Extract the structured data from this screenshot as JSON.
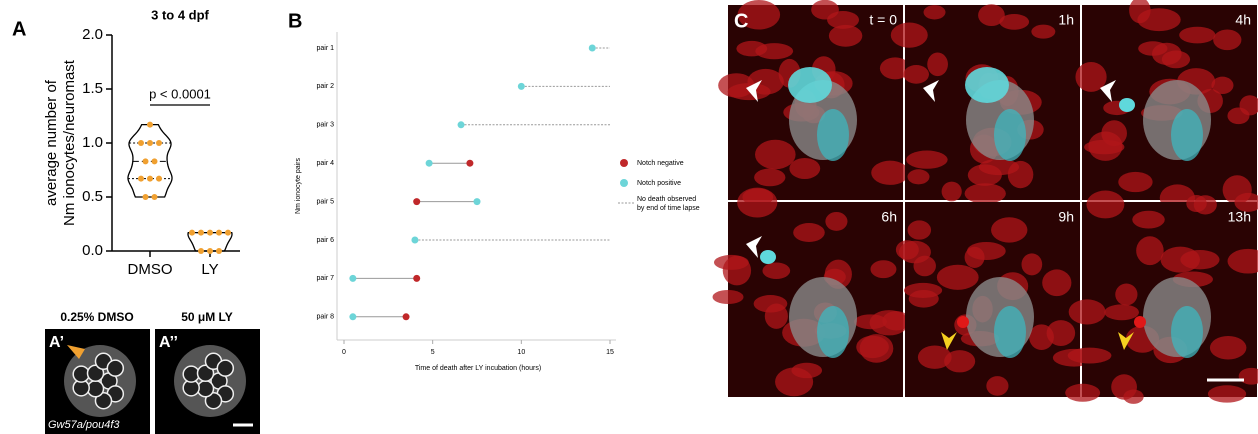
{
  "chart_data": [
    {
      "type": "violin",
      "panel": "A",
      "title": "3 to 4 dpf",
      "ylabel": [
        "average number of",
        "Nm ionocytes/neuromast"
      ],
      "categories": [
        "DMSO",
        "LY"
      ],
      "groups": [
        {
          "name": "DMSO",
          "color": "#f0a030",
          "values": [
            1.17,
            1.0,
            1.0,
            1.0,
            0.83,
            0.83,
            0.67,
            0.67,
            0.67,
            0.5,
            0.5
          ]
        },
        {
          "name": "LY",
          "color": "#f0a030",
          "values": [
            0.17,
            0.17,
            0.17,
            0.17,
            0.17,
            0.0,
            0.0,
            0.0
          ]
        }
      ],
      "annotation": "p < 0.0001",
      "ylim": [
        0,
        2
      ],
      "yticks": [
        {
          "value": 0,
          "label": "0.0"
        },
        {
          "value": 0.5,
          "label": "0.5"
        },
        {
          "value": 1,
          "label": "1.0"
        },
        {
          "value": 1.5,
          "label": "1.5"
        },
        {
          "value": 2,
          "label": "2.0"
        }
      ]
    },
    {
      "type": "dumbbell",
      "panel": "B",
      "xlabel": "Time of death after LY incubation (hours)",
      "ylabel": "Nm ionocyte pairs",
      "categories": [
        "pair 1",
        "pair 2",
        "pair 3",
        "pair 4",
        "pair 5",
        "pair 6",
        "pair 7",
        "pair 8"
      ],
      "series": [
        {
          "name": "Notch negative",
          "color": "#c0282a",
          "values": [
            null,
            null,
            null,
            7.1,
            4.1,
            null,
            4.1,
            3.5
          ]
        },
        {
          "name": "Notch positive",
          "color": "#6dd5d8",
          "values": [
            14,
            10,
            6.6,
            4.8,
            7.5,
            4.0,
            0.5,
            0.5
          ]
        }
      ],
      "censored_legend": [
        "No death observed",
        "by end of time lapse"
      ],
      "xlim": [
        0,
        15
      ],
      "xticks": [
        0,
        5,
        10,
        15
      ]
    }
  ],
  "micrographs": {
    "A": [
      {
        "label": "A’",
        "title": "0.25% DMSO",
        "caption": "Gw57a/pou4f3"
      },
      {
        "label": "A’’",
        "title": "50 μM LY"
      }
    ],
    "C": {
      "label": "C",
      "times": [
        "t = 0",
        "1h",
        "4h",
        "6h",
        "9h",
        "13h"
      ]
    }
  }
}
